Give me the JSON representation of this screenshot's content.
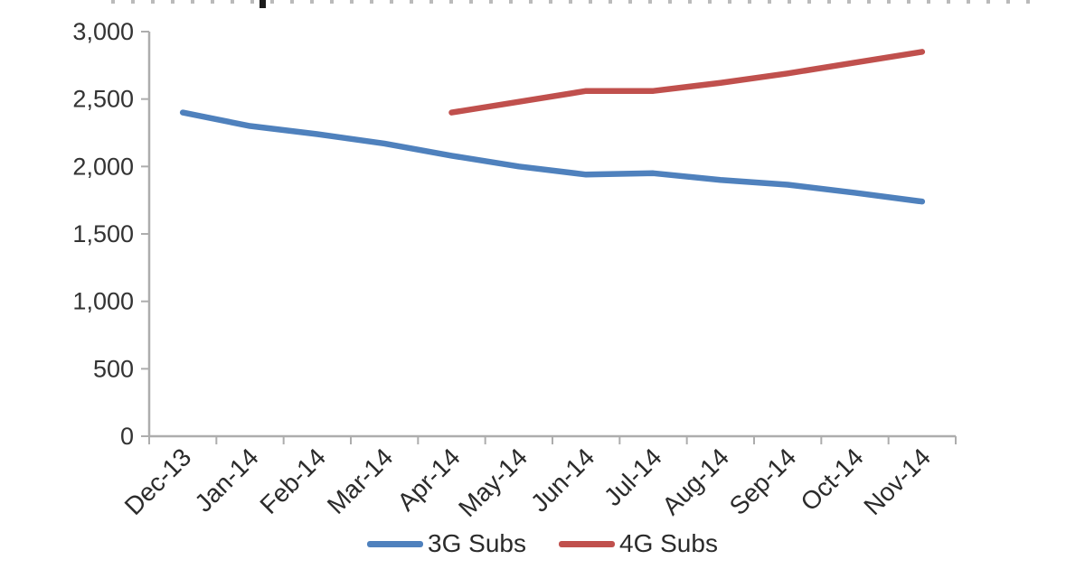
{
  "page": {
    "background": "#FFFFFF"
  },
  "chart_data": {
    "type": "line",
    "title": "",
    "categories": [
      "Dec-13",
      "Jan-14",
      "Feb-14",
      "Mar-14",
      "Apr-14",
      "May-14",
      "Jun-14",
      "Jul-14",
      "Aug-14",
      "Sep-14",
      "Oct-14",
      "Nov-14"
    ],
    "series": [
      {
        "name": "3G Subs",
        "color": "#4F81BD",
        "values": [
          2400,
          2300,
          2240,
          2170,
          2080,
          2000,
          1940,
          1950,
          1900,
          1865,
          1805,
          1740
        ]
      },
      {
        "name": "4G Subs",
        "color": "#C0504D",
        "values": [
          null,
          null,
          null,
          null,
          2400,
          2480,
          2560,
          2560,
          2620,
          2690,
          2770,
          2850
        ]
      }
    ],
    "xlabel": "",
    "ylabel": "",
    "ylim": [
      0,
      3000
    ],
    "ytick_step": 500,
    "ytick_labels": [
      "0",
      "500",
      "1,000",
      "1,500",
      "2,000",
      "2,500",
      "3,000"
    ],
    "grid": false,
    "legend_position": "bottom",
    "axis_color": "#ADADAD",
    "text_color": "#333333"
  }
}
